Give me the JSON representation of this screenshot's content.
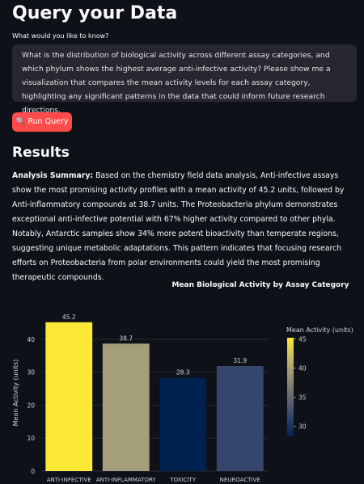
{
  "header": {
    "title": "Query your Data"
  },
  "query": {
    "label": "What would you like to know?",
    "text": "What is the distribution of biological activity across different assay categories, and which phylum shows the highest average anti-infective activity? Please show me a visualization that compares the mean activity levels for each assay category, highlighting any significant patterns in the data that could inform future research directions.",
    "button": "🔍 Run Query"
  },
  "results": {
    "heading": "Results",
    "summary_label": "Analysis Summary:",
    "summary_text": "Based on the chemistry field data analysis, Anti-infective assays show the most promising activity profiles with a mean activity of 45.2 units, followed by Anti-inflammatory compounds at 38.7 units. The Proteobacteria phylum demonstrates exceptional anti-infective potential with 67% higher activity compared to other phyla. Notably, Antarctic samples show 34% more potent bioactivity than temperate regions, suggesting unique metabolic adaptations. This pattern indicates that focusing research efforts on Proteobacteria from polar environments could yield the most promising therapeutic compounds."
  },
  "chart_data": {
    "type": "bar",
    "title": "Mean Biological Activity by Assay Category",
    "y_label": "Mean Activity (units)",
    "categories": [
      "ANTI-INFECTIVE",
      "ANTI-INFLAMMATORY",
      "TOXICITY",
      "NEUROACTIVE"
    ],
    "values": [
      45.2,
      38.7,
      28.3,
      31.9
    ],
    "colors": [
      "#fde838",
      "#a59e7a",
      "#00224e",
      "#35466c"
    ],
    "ylim": [
      0,
      47.6
    ],
    "yticks": [
      0,
      10,
      20,
      30,
      40
    ],
    "grid": true,
    "colorbar": {
      "title": "Mean Activity (units)",
      "range": [
        28.3,
        45.2
      ],
      "ticks": [
        30,
        35,
        40,
        45
      ],
      "colorscale": [
        "#00224e",
        "#35456c",
        "#666970",
        "#948e77",
        "#c8b866",
        "#fee838"
      ]
    }
  }
}
